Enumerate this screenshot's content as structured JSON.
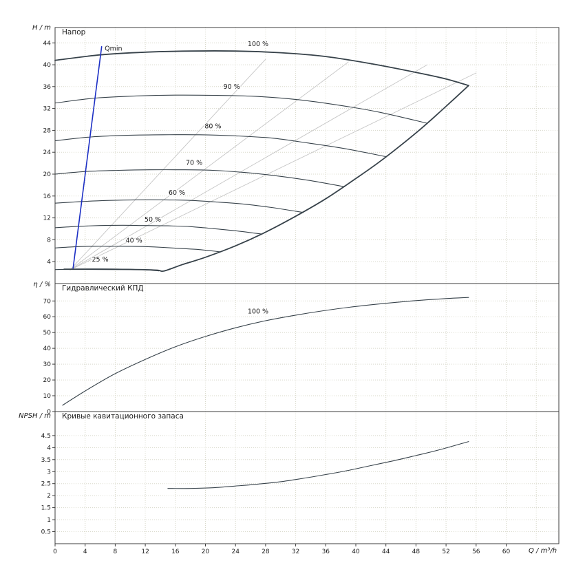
{
  "page": {
    "background": "#ffffff"
  },
  "colors": {
    "curve": "#37424a",
    "envelope": "#37424a",
    "qmin_line": "#1c2fc4",
    "iso_efficiency_line": "#c6c6c6",
    "grid": "#d8d8ca",
    "axis": "#3c3c3c",
    "text": "#1a1a1a"
  },
  "chart_data": {
    "type": "line",
    "x": {
      "label": "Q / m³/h",
      "min": 0,
      "max": 67,
      "grid_step": 4,
      "ticks": [
        0,
        4,
        8,
        12,
        16,
        20,
        24,
        28,
        32,
        36,
        40,
        44,
        48,
        52,
        56,
        60
      ]
    },
    "plots": [
      {
        "id": "head",
        "title": "Напор",
        "ylabel": "H / m",
        "ymin": 0,
        "ymax": 46.8,
        "yticks": [
          4,
          8,
          12,
          16,
          20,
          24,
          28,
          32,
          36,
          40,
          44
        ],
        "series": [
          {
            "name": "iso-efficiency-1",
            "role": "iso",
            "points": [
              [
                2,
                2.5
              ],
              [
                56,
                38.5
              ]
            ]
          },
          {
            "name": "iso-efficiency-2",
            "role": "iso",
            "points": [
              [
                2,
                2.5
              ],
              [
                49.5,
                40
              ]
            ]
          },
          {
            "name": "iso-efficiency-3",
            "role": "iso",
            "points": [
              [
                2,
                2.5
              ],
              [
                39,
                40.5
              ]
            ]
          },
          {
            "name": "iso-efficiency-4",
            "role": "iso",
            "points": [
              [
                2,
                2.5
              ],
              [
                28,
                41
              ]
            ]
          },
          {
            "name": "speed-100",
            "label": "100 %",
            "label_at": [
              27,
              43.4
            ],
            "role": "envelope",
            "points": [
              [
                0,
                40.8
              ],
              [
                6,
                41.8
              ],
              [
                12,
                42.3
              ],
              [
                18,
                42.5
              ],
              [
                24,
                42.5
              ],
              [
                30,
                42.2
              ],
              [
                36,
                41.5
              ],
              [
                42,
                40.2
              ],
              [
                48,
                38.6
              ],
              [
                52,
                37.4
              ],
              [
                55,
                36.2
              ]
            ]
          },
          {
            "name": "speed-90",
            "label": "90 %",
            "label_at": [
              23.5,
              35.6
            ],
            "points": [
              [
                0,
                33.0
              ],
              [
                5.4,
                33.9
              ],
              [
                10.8,
                34.3
              ],
              [
                16.2,
                34.45
              ],
              [
                21.6,
                34.4
              ],
              [
                27,
                34.2
              ],
              [
                32.4,
                33.6
              ],
              [
                37.8,
                32.6
              ],
              [
                43.2,
                31.3
              ],
              [
                49.5,
                29.3
              ]
            ]
          },
          {
            "name": "speed-80",
            "label": "80 %",
            "label_at": [
              21,
              28.4
            ],
            "points": [
              [
                0,
                26.1
              ],
              [
                4.8,
                26.8
              ],
              [
                9.6,
                27.1
              ],
              [
                14.4,
                27.2
              ],
              [
                19.2,
                27.2
              ],
              [
                24,
                27.0
              ],
              [
                28.8,
                26.6
              ],
              [
                33.6,
                25.7
              ],
              [
                38.4,
                24.7
              ],
              [
                44,
                23.2
              ]
            ]
          },
          {
            "name": "speed-70",
            "label": "70 %",
            "label_at": [
              18.5,
              21.7
            ],
            "points": [
              [
                0,
                20.0
              ],
              [
                4.2,
                20.5
              ],
              [
                8.4,
                20.7
              ],
              [
                12.6,
                20.8
              ],
              [
                16.8,
                20.8
              ],
              [
                21,
                20.7
              ],
              [
                25.2,
                20.3
              ],
              [
                29.4,
                19.7
              ],
              [
                33.6,
                18.9
              ],
              [
                38.5,
                17.7
              ]
            ]
          },
          {
            "name": "speed-60",
            "label": "60 %",
            "label_at": [
              16.2,
              16.2
            ],
            "points": [
              [
                0,
                14.7
              ],
              [
                3.6,
                15.0
              ],
              [
                7.2,
                15.2
              ],
              [
                10.8,
                15.3
              ],
              [
                14.4,
                15.3
              ],
              [
                18,
                15.2
              ],
              [
                21.6,
                14.9
              ],
              [
                25.2,
                14.5
              ],
              [
                28.8,
                13.9
              ],
              [
                33,
                13.0
              ]
            ]
          },
          {
            "name": "speed-50",
            "label": "50 %",
            "label_at": [
              13,
              11.3
            ],
            "points": [
              [
                0,
                10.2
              ],
              [
                3,
                10.45
              ],
              [
                6,
                10.6
              ],
              [
                9,
                10.65
              ],
              [
                12,
                10.6
              ],
              [
                15,
                10.55
              ],
              [
                18,
                10.4
              ],
              [
                21,
                10.05
              ],
              [
                24,
                9.65
              ],
              [
                27.5,
                9.05
              ]
            ]
          },
          {
            "name": "speed-40",
            "label": "40 %",
            "label_at": [
              10.5,
              7.5
            ],
            "points": [
              [
                0,
                6.5
              ],
              [
                2.4,
                6.7
              ],
              [
                4.8,
                6.8
              ],
              [
                7.2,
                6.8
              ],
              [
                9.6,
                6.8
              ],
              [
                12,
                6.75
              ],
              [
                14.4,
                6.6
              ],
              [
                16.8,
                6.4
              ],
              [
                19.2,
                6.2
              ],
              [
                22,
                5.8
              ]
            ]
          },
          {
            "name": "speed-25",
            "label": "25 %",
            "label_at": [
              6,
              4.0
            ],
            "points": [
              [
                0,
                2.55
              ],
              [
                3,
                2.65
              ],
              [
                6,
                2.67
              ],
              [
                9,
                2.64
              ],
              [
                12,
                2.5
              ],
              [
                13.8,
                2.3
              ]
            ]
          },
          {
            "name": "envelope-right",
            "role": "envelope",
            "points": [
              [
                55,
                36.2
              ],
              [
                52,
                32.4
              ],
              [
                49,
                28.7
              ],
              [
                46,
                25.3
              ],
              [
                43,
                22.1
              ],
              [
                40,
                19.2
              ],
              [
                36,
                15.5
              ],
              [
                32,
                12.3
              ],
              [
                28,
                9.4
              ],
              [
                24,
                6.9
              ],
              [
                20,
                4.8
              ],
              [
                17,
                3.5
              ],
              [
                14.5,
                2.3
              ],
              [
                13.5,
                2.45
              ],
              [
                10,
                2.58
              ],
              [
                5,
                2.62
              ],
              [
                1.2,
                2.62
              ]
            ]
          },
          {
            "name": "qmin",
            "label": "Qmin",
            "label_at": [
              6.6,
              42.6
            ],
            "label_anchor": "start",
            "role": "qmin",
            "points": [
              [
                2.4,
                2.8
              ],
              [
                6.2,
                43.3
              ]
            ]
          }
        ]
      },
      {
        "id": "efficiency",
        "title": "Гидравлический КПД",
        "ylabel": "η / %",
        "ymin": 0,
        "ymax": 81,
        "yticks": [
          0,
          10,
          20,
          30,
          40,
          50,
          60,
          70
        ],
        "series": [
          {
            "name": "efficiency-100",
            "label": "100 %",
            "label_at": [
              27,
              62
            ],
            "points": [
              [
                1,
                4
              ],
              [
                4,
                13
              ],
              [
                8,
                24
              ],
              [
                12,
                33
              ],
              [
                16,
                41
              ],
              [
                20,
                47.5
              ],
              [
                24,
                53
              ],
              [
                28,
                57.5
              ],
              [
                32,
                61
              ],
              [
                36,
                64
              ],
              [
                40,
                66.5
              ],
              [
                44,
                68.5
              ],
              [
                48,
                70.2
              ],
              [
                52,
                71.5
              ],
              [
                55,
                72.2
              ]
            ]
          }
        ]
      },
      {
        "id": "npsh",
        "title": "Кривые кавитационного запаса",
        "ylabel": "NPSH / m",
        "ymin": 0,
        "ymax": 5.5,
        "yticks": [
          0.5,
          1,
          1.5,
          2,
          2.5,
          3,
          3.5,
          4,
          4.5
        ],
        "series": [
          {
            "name": "npsh-curve",
            "points": [
              [
                15,
                2.3
              ],
              [
                18,
                2.3
              ],
              [
                21,
                2.33
              ],
              [
                24,
                2.4
              ],
              [
                27,
                2.48
              ],
              [
                30,
                2.58
              ],
              [
                33,
                2.72
              ],
              [
                36,
                2.88
              ],
              [
                39,
                3.05
              ],
              [
                42,
                3.25
              ],
              [
                45,
                3.45
              ],
              [
                48,
                3.67
              ],
              [
                51,
                3.9
              ],
              [
                55,
                4.25
              ]
            ]
          }
        ]
      }
    ]
  }
}
